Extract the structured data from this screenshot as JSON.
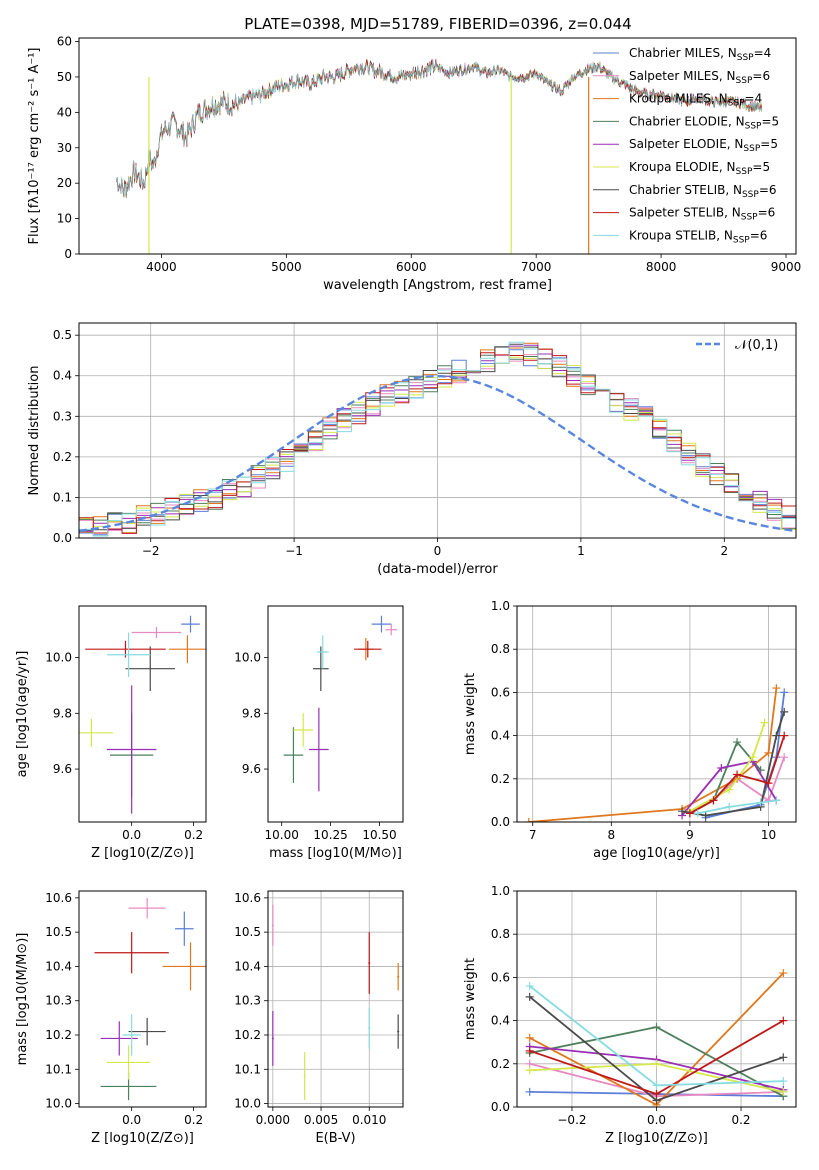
{
  "figure_title": "PLATE=0398, MJD=51789, FIBERID=0396, z=0.044",
  "colors": {
    "Chabrier MILES": "#5b7fd6",
    "Salpeter MILES": "#e889c3",
    "Kroupa MILES": "#e0771c",
    "Chabrier ELODIE": "#4e7f5c",
    "Salpeter ELODIE": "#9a2fb5",
    "Kroupa ELODIE": "#d4e84a",
    "Chabrier STELIB": "#4a4a4a",
    "Salpeter STELIB": "#c01818",
    "Kroupa STELIB": "#86dce0",
    "normal": "#5b86de"
  },
  "chart_data": [
    {
      "type": "line",
      "id": "spectrum",
      "xlabel": "wavelength [Angstrom, rest frame]",
      "ylabel": "Flux [fλ10⁻¹⁷ erg cm⁻² s⁻¹ A⁻¹]",
      "xlim": [
        3340,
        9080
      ],
      "ylim": [
        0,
        61
      ],
      "xticks": [
        4000,
        5000,
        6000,
        7000,
        8000,
        9000
      ],
      "yticks": [
        0,
        10,
        20,
        30,
        40,
        50,
        60
      ],
      "grid": false,
      "legend_position": "upper-right",
      "x": [
        3640,
        3700,
        3780,
        3860,
        3900,
        3940,
        3980,
        4020,
        4100,
        4200,
        4300,
        4400,
        4500,
        4600,
        4700,
        4800,
        4900,
        5000,
        5100,
        5200,
        5300,
        5400,
        5500,
        5600,
        5700,
        5800,
        5900,
        6000,
        6100,
        6200,
        6300,
        6400,
        6500,
        6600,
        6700,
        6800,
        6900,
        7000,
        7100,
        7200,
        7300,
        7400,
        7500,
        7600,
        7700,
        7800,
        7900,
        8000,
        8100,
        8200,
        8300,
        8400,
        8500,
        8600,
        8700,
        8810
      ],
      "values": [
        21,
        18,
        23,
        20,
        27,
        25,
        32,
        35,
        37,
        33,
        40,
        42,
        43,
        42,
        44,
        45,
        47,
        48,
        49,
        48,
        50,
        50,
        52,
        53,
        52,
        51,
        50,
        51,
        52,
        53,
        51,
        52,
        53,
        51,
        52,
        50,
        50,
        51,
        48,
        46,
        50,
        52,
        53,
        50,
        48,
        46,
        45,
        45,
        44,
        43,
        44,
        43,
        43,
        43,
        42,
        41
      ],
      "series": [
        {
          "name": "Chabrier MILES, N_SSP=4",
          "label_main": "Chabrier MILES, N",
          "label_sub": "SSP",
          "label_tail": "=4"
        },
        {
          "name": "Salpeter MILES, N_SSP=6",
          "label_main": "Salpeter MILES, N",
          "label_sub": "SSP",
          "label_tail": "=6"
        },
        {
          "name": "Kroupa MILES, N_SSP=4",
          "label_main": "Kroupa MILES, N",
          "label_sub": "SSP",
          "label_tail": "=4"
        },
        {
          "name": "Chabrier ELODIE, N_SSP=5",
          "label_main": "Chabrier ELODIE, N",
          "label_sub": "SSP",
          "label_tail": "=5"
        },
        {
          "name": "Salpeter ELODIE, N_SSP=5",
          "label_main": "Salpeter ELODIE, N",
          "label_sub": "SSP",
          "label_tail": "=5"
        },
        {
          "name": "Kroupa ELODIE, N_SSP=5",
          "label_main": "Kroupa ELODIE, N",
          "label_sub": "SSP",
          "label_tail": "=5"
        },
        {
          "name": "Chabrier STELIB, N_SSP=6",
          "label_main": "Chabrier STELIB, N",
          "label_sub": "SSP",
          "label_tail": "=6"
        },
        {
          "name": "Salpeter STELIB, N_SSP=6",
          "label_main": "Salpeter STELIB, N",
          "label_sub": "SSP",
          "label_tail": "=6"
        },
        {
          "name": "Kroupa STELIB, N_SSP=6",
          "label_main": "Kroupa STELIB, N",
          "label_sub": "SSP",
          "label_tail": "=6"
        }
      ],
      "dropouts": [
        {
          "series": "Kroupa ELODIE, N_SSP=5",
          "x": 3900,
          "y": 0
        },
        {
          "series": "Kroupa ELODIE, N_SSP=5",
          "x": 6800,
          "y": 0
        },
        {
          "series": "Kroupa MILES, N_SSP=4",
          "x": 7420,
          "y": 0
        }
      ]
    },
    {
      "type": "histogram",
      "id": "residuals",
      "xlabel": "(data-model)/error",
      "ylabel": "Normed distribution",
      "xlim": [
        -2.5,
        2.5
      ],
      "ylim": [
        0,
        0.53
      ],
      "xticks": [
        -2,
        -1,
        0,
        1,
        2
      ],
      "xtick_labels": [
        "−2",
        "−1",
        "0",
        "1",
        "2"
      ],
      "yticks": [
        0,
        0.1,
        0.2,
        0.3,
        0.4,
        0.5
      ],
      "ytick_labels": [
        "0.0",
        "0.1",
        "0.2",
        "0.3",
        "0.4",
        "0.5"
      ],
      "grid": true,
      "legend_position": "upper-right",
      "reference_curve": {
        "name": "N(0,1)",
        "label": "𝒩(0,1)",
        "style": "dashed",
        "mean": 0,
        "sigma": 1
      },
      "bin_width": 0.1,
      "bin_start": -2.5,
      "values": [
        0.028,
        0.03,
        0.035,
        0.04,
        0.05,
        0.06,
        0.07,
        0.08,
        0.09,
        0.1,
        0.12,
        0.13,
        0.15,
        0.17,
        0.19,
        0.21,
        0.24,
        0.27,
        0.29,
        0.31,
        0.33,
        0.35,
        0.36,
        0.37,
        0.39,
        0.4,
        0.41,
        0.43,
        0.44,
        0.45,
        0.46,
        0.45,
        0.44,
        0.42,
        0.4,
        0.38,
        0.36,
        0.34,
        0.32,
        0.3,
        0.27,
        0.24,
        0.21,
        0.18,
        0.16,
        0.13,
        0.11,
        0.09,
        0.07,
        0.05
      ]
    },
    {
      "type": "scatter",
      "id": "age_vs_Z",
      "xlabel": "Z [log10(Z/Z⊙)]",
      "ylabel": "age  [log10(age/yr)]",
      "xlim": [
        -0.17,
        0.24
      ],
      "ylim": [
        9.41,
        10.185
      ],
      "xticks": [
        0,
        0.2
      ],
      "xtick_labels": [
        "0.0",
        "0.2"
      ],
      "yticks": [
        9.6,
        9.8,
        10.0
      ],
      "ytick_labels": [
        "9.6",
        "9.8",
        "10.0"
      ],
      "grid": false,
      "points": [
        {
          "series": "Chabrier MILES",
          "x": 0.19,
          "y": 10.12,
          "xerr": 0.03,
          "yerr": 0.03
        },
        {
          "series": "Salpeter MILES",
          "x": 0.08,
          "y": 10.09,
          "xerr": 0.08,
          "yerr": 0.02
        },
        {
          "series": "Kroupa MILES",
          "x": 0.18,
          "y": 10.03,
          "xerr": 0.06,
          "yerr": 0.05
        },
        {
          "series": "Chabrier ELODIE",
          "x": 0.0,
          "y": 9.65,
          "xerr": 0.07,
          "yerr": 0.15
        },
        {
          "series": "Salpeter ELODIE",
          "x": 0.0,
          "y": 9.67,
          "xerr": 0.08,
          "yerr": 0.23
        },
        {
          "series": "Kroupa ELODIE",
          "x": -0.13,
          "y": 9.73,
          "xerr": 0.07,
          "yerr": 0.05
        },
        {
          "series": "Chabrier STELIB",
          "x": 0.06,
          "y": 9.96,
          "xerr": 0.08,
          "yerr": 0.08
        },
        {
          "series": "Salpeter STELIB",
          "x": -0.02,
          "y": 10.03,
          "xerr": 0.13,
          "yerr": 0.03
        },
        {
          "series": "Kroupa STELIB",
          "x": -0.01,
          "y": 10.01,
          "xerr": 0.07,
          "yerr": 0.08
        }
      ]
    },
    {
      "type": "scatter",
      "id": "age_vs_mass",
      "xlabel": "mass [log10(M/M⊙)]",
      "xlim": [
        9.93,
        10.62
      ],
      "ylim": [
        9.41,
        10.185
      ],
      "xticks": [
        10.0,
        10.25,
        10.5
      ],
      "xtick_labels": [
        "10.00",
        "10.25",
        "10.50"
      ],
      "yticks": [
        9.6,
        9.8,
        10.0
      ],
      "ytick_labels": [
        "9.6",
        "9.8",
        "10.0"
      ],
      "grid": false,
      "points": [
        {
          "series": "Chabrier MILES",
          "x": 10.51,
          "y": 10.12,
          "xerr": 0.05,
          "yerr": 0.03
        },
        {
          "series": "Salpeter MILES",
          "x": 10.56,
          "y": 10.1,
          "xerr": 0.03,
          "yerr": 0.02
        },
        {
          "series": "Kroupa MILES",
          "x": 10.43,
          "y": 10.03,
          "xerr": 0.04,
          "yerr": 0.04
        },
        {
          "series": "Chabrier ELODIE",
          "x": 10.06,
          "y": 9.65,
          "xerr": 0.05,
          "yerr": 0.1
        },
        {
          "series": "Salpeter ELODIE",
          "x": 10.19,
          "y": 9.67,
          "xerr": 0.05,
          "yerr": 0.15
        },
        {
          "series": "Kroupa ELODIE",
          "x": 10.11,
          "y": 9.74,
          "xerr": 0.05,
          "yerr": 0.06
        },
        {
          "series": "Chabrier STELIB",
          "x": 10.2,
          "y": 9.96,
          "xerr": 0.04,
          "yerr": 0.08
        },
        {
          "series": "Salpeter STELIB",
          "x": 10.44,
          "y": 10.03,
          "xerr": 0.07,
          "yerr": 0.03
        },
        {
          "series": "Kroupa STELIB",
          "x": 10.21,
          "y": 10.02,
          "xerr": 0.03,
          "yerr": 0.06
        }
      ]
    },
    {
      "type": "line",
      "id": "mass_weight_vs_age",
      "xlabel": "age  [log10(age/yr)]",
      "ylabel": "mass weight",
      "xlim": [
        6.8,
        10.35
      ],
      "ylim": [
        0,
        1.0
      ],
      "xticks": [
        7,
        8,
        9,
        10
      ],
      "yticks": [
        0,
        0.2,
        0.4,
        0.6,
        0.8,
        1.0
      ],
      "ytick_labels": [
        "0.0",
        "0.2",
        "0.4",
        "0.6",
        "0.8",
        "1.0"
      ],
      "grid": true,
      "series": [
        {
          "name": "Chabrier MILES",
          "x": [
            9.2,
            9.9,
            10.1,
            10.2
          ],
          "y": [
            0.02,
            0.08,
            0.3,
            0.6
          ]
        },
        {
          "name": "Salpeter MILES",
          "x": [
            9.0,
            9.3,
            9.6,
            10.0,
            10.2
          ],
          "y": [
            0.05,
            0.1,
            0.2,
            0.1,
            0.3
          ]
        },
        {
          "name": "Kroupa MILES",
          "x": [
            6.95,
            8.9,
            9.6,
            10.0,
            10.1
          ],
          "y": [
            0.0,
            0.06,
            0.2,
            0.32,
            0.62
          ]
        },
        {
          "name": "Chabrier ELODIE",
          "x": [
            9.0,
            9.3,
            9.6,
            9.9
          ],
          "y": [
            0.04,
            0.1,
            0.37,
            0.24
          ]
        },
        {
          "name": "Salpeter ELODIE",
          "x": [
            8.9,
            9.4,
            9.8,
            10.1
          ],
          "y": [
            0.03,
            0.25,
            0.28,
            0.1
          ]
        },
        {
          "name": "Kroupa ELODIE",
          "x": [
            9.0,
            9.5,
            9.8,
            9.95
          ],
          "y": [
            0.05,
            0.15,
            0.3,
            0.46
          ]
        },
        {
          "name": "Chabrier STELIB",
          "x": [
            8.9,
            9.2,
            9.9,
            10.1,
            10.2
          ],
          "y": [
            0.05,
            0.03,
            0.07,
            0.4,
            0.51
          ]
        },
        {
          "name": "Salpeter STELIB",
          "x": [
            9.0,
            9.3,
            9.6,
            10.0,
            10.2
          ],
          "y": [
            0.04,
            0.1,
            0.22,
            0.18,
            0.4
          ]
        },
        {
          "name": "Kroupa STELIB",
          "x": [
            9.1,
            9.5,
            9.9,
            10.1
          ],
          "y": [
            0.04,
            0.07,
            0.09,
            0.1
          ]
        }
      ]
    },
    {
      "type": "scatter",
      "id": "mass_vs_Z",
      "xlabel": "Z [log10(Z/Z⊙)]",
      "ylabel": "mass [log10(M/M⊙)]",
      "xlim": [
        -0.17,
        0.24
      ],
      "ylim": [
        9.99,
        10.62
      ],
      "xticks": [
        0,
        0.2
      ],
      "xtick_labels": [
        "0.0",
        "0.2"
      ],
      "yticks": [
        10.0,
        10.1,
        10.2,
        10.3,
        10.4,
        10.5,
        10.6
      ],
      "ytick_labels": [
        "10.0",
        "10.1",
        "10.2",
        "10.3",
        "10.4",
        "10.5",
        "10.6"
      ],
      "grid": false,
      "points": [
        {
          "series": "Chabrier MILES",
          "x": 0.17,
          "y": 10.51,
          "xerr": 0.03,
          "yerr": 0.05
        },
        {
          "series": "Salpeter MILES",
          "x": 0.05,
          "y": 10.57,
          "xerr": 0.06,
          "yerr": 0.03
        },
        {
          "series": "Kroupa MILES",
          "x": 0.19,
          "y": 10.4,
          "xerr": 0.09,
          "yerr": 0.07
        },
        {
          "series": "Chabrier ELODIE",
          "x": -0.01,
          "y": 10.05,
          "xerr": 0.09,
          "yerr": 0.04
        },
        {
          "series": "Salpeter ELODIE",
          "x": -0.04,
          "y": 10.19,
          "xerr": 0.06,
          "yerr": 0.05
        },
        {
          "series": "Kroupa ELODIE",
          "x": -0.01,
          "y": 10.12,
          "xerr": 0.07,
          "yerr": 0.05
        },
        {
          "series": "Chabrier STELIB",
          "x": 0.05,
          "y": 10.21,
          "xerr": 0.06,
          "yerr": 0.04
        },
        {
          "series": "Salpeter STELIB",
          "x": 0.0,
          "y": 10.44,
          "xerr": 0.12,
          "yerr": 0.06
        },
        {
          "series": "Kroupa STELIB",
          "x": 0.0,
          "y": 10.2,
          "xerr": 0.03,
          "yerr": 0.06
        }
      ]
    },
    {
      "type": "scatter",
      "id": "mass_vs_ebv",
      "xlabel": "E(B-V)",
      "xlim": [
        -0.0005,
        0.0135
      ],
      "ylim": [
        9.99,
        10.62
      ],
      "xticks": [
        0.0,
        0.005,
        0.01
      ],
      "xtick_labels": [
        "0.000",
        "0.005",
        "0.010"
      ],
      "yticks": [
        10.0,
        10.1,
        10.2,
        10.3,
        10.4,
        10.5,
        10.6
      ],
      "ytick_labels": [
        "10.0",
        "10.1",
        "10.2",
        "10.3",
        "10.4",
        "10.5",
        "10.6"
      ],
      "grid": true,
      "points": [
        {
          "series": "Salpeter MILES",
          "x": 0.0,
          "y": 10.52,
          "yerr": 0.06
        },
        {
          "series": "Salpeter ELODIE",
          "x": 0.0,
          "y": 10.19,
          "yerr": 0.08
        },
        {
          "series": "Kroupa ELODIE",
          "x": 0.0033,
          "y": 10.08,
          "yerr": 0.07
        },
        {
          "series": "Salpeter STELIB",
          "x": 0.01,
          "y": 10.41,
          "yerr": 0.09
        },
        {
          "series": "Kroupa STELIB",
          "x": 0.01,
          "y": 10.22,
          "yerr": 0.06
        },
        {
          "series": "Kroupa MILES",
          "x": 0.013,
          "y": 10.37,
          "yerr": 0.04
        },
        {
          "series": "Chabrier STELIB",
          "x": 0.013,
          "y": 10.21,
          "yerr": 0.05
        }
      ]
    },
    {
      "type": "line",
      "id": "mass_weight_vs_Z",
      "xlabel": "Z [log10(Z/Z⊙)]",
      "ylabel": "mass weight",
      "xlim": [
        -0.33,
        0.33
      ],
      "ylim": [
        0,
        1.0
      ],
      "xticks": [
        -0.2,
        0.0,
        0.2
      ],
      "xtick_labels": [
        "−0.2",
        "0.0",
        "0.2"
      ],
      "yticks": [
        0,
        0.2,
        0.4,
        0.6,
        0.8,
        1.0
      ],
      "ytick_labels": [
        "0.0",
        "0.2",
        "0.4",
        "0.6",
        "0.8",
        "1.0"
      ],
      "grid": true,
      "series": [
        {
          "name": "Chabrier MILES",
          "x": [
            -0.3,
            0.0,
            0.3
          ],
          "y": [
            0.07,
            0.06,
            0.05
          ]
        },
        {
          "name": "Salpeter MILES",
          "x": [
            -0.3,
            0.0,
            0.3
          ],
          "y": [
            0.2,
            0.05,
            0.07
          ]
        },
        {
          "name": "Kroupa MILES",
          "x": [
            -0.3,
            0.0,
            0.3
          ],
          "y": [
            0.32,
            0.01,
            0.62
          ]
        },
        {
          "name": "Chabrier ELODIE",
          "x": [
            -0.3,
            0.0,
            0.3
          ],
          "y": [
            0.25,
            0.37,
            0.05
          ]
        },
        {
          "name": "Salpeter ELODIE",
          "x": [
            -0.3,
            0.0,
            0.3
          ],
          "y": [
            0.28,
            0.22,
            0.08
          ]
        },
        {
          "name": "Kroupa ELODIE",
          "x": [
            -0.3,
            0.0,
            0.3
          ],
          "y": [
            0.17,
            0.2,
            0.07
          ]
        },
        {
          "name": "Chabrier STELIB",
          "x": [
            -0.3,
            0.0,
            0.3
          ],
          "y": [
            0.51,
            0.03,
            0.23
          ]
        },
        {
          "name": "Salpeter STELIB",
          "x": [
            -0.3,
            0.0,
            0.3
          ],
          "y": [
            0.26,
            0.06,
            0.4
          ]
        },
        {
          "name": "Kroupa STELIB",
          "x": [
            -0.3,
            0.0,
            0.3
          ],
          "y": [
            0.56,
            0.1,
            0.12
          ]
        }
      ]
    }
  ]
}
